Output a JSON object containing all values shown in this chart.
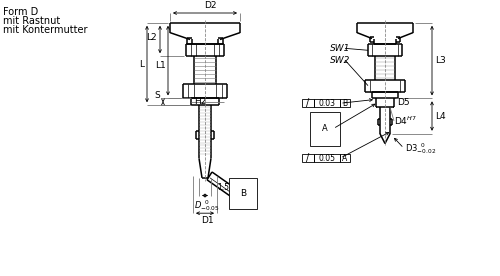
{
  "bg_color": "#ffffff",
  "line_color": "#000000",
  "text_color": "#000000",
  "title_lines": [
    "Form D",
    "mit Rastnut",
    "mit Kontermutter"
  ],
  "title_fontsize": 7.0,
  "dim_fontsize": 6.5,
  "label_fontsize": 6.5
}
